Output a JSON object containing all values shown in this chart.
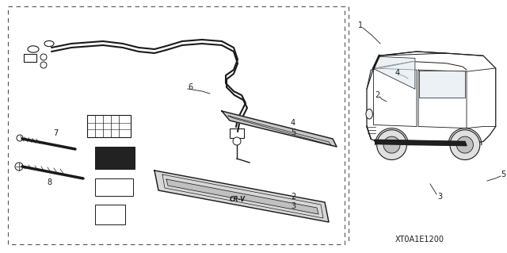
{
  "bg_color": "#ffffff",
  "text_color": "#1a1a1a",
  "image_code": "XT0A1E1200",
  "fig_width": 6.4,
  "fig_height": 3.19,
  "dpi": 100,
  "dashed_color": "#555555"
}
